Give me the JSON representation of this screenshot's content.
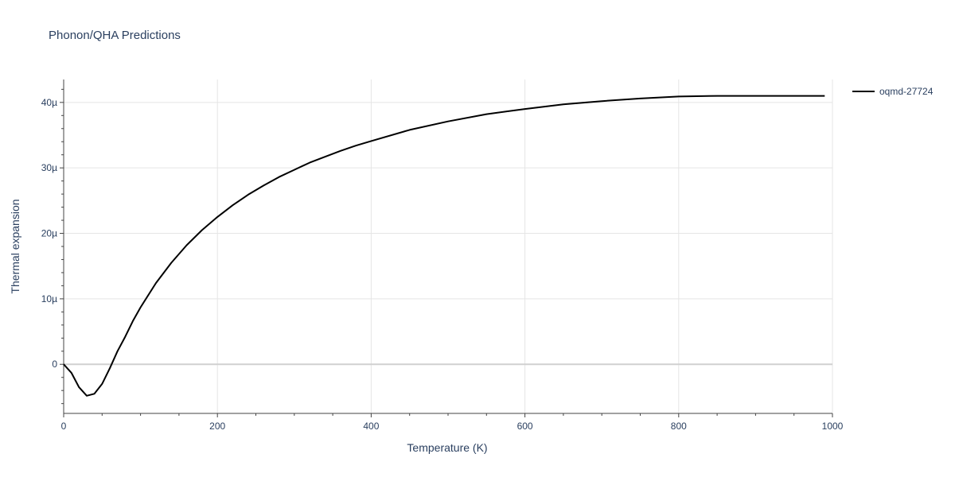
{
  "chart_data": {
    "type": "line",
    "title": "Phonon/QHA Predictions",
    "xlabel": "Temperature (K)",
    "ylabel": "Thermal expansion",
    "xlim": [
      0,
      1000
    ],
    "ylim": [
      -7.5e-06,
      4.35e-05
    ],
    "grid": true,
    "legend_position": "top-right",
    "x_ticks": [
      {
        "value": 0,
        "label": "0"
      },
      {
        "value": 200,
        "label": "200"
      },
      {
        "value": 400,
        "label": "400"
      },
      {
        "value": 600,
        "label": "600"
      },
      {
        "value": 800,
        "label": "800"
      },
      {
        "value": 1000,
        "label": "1000"
      }
    ],
    "y_ticks": [
      {
        "value": 0,
        "label": "0"
      },
      {
        "value": 1e-05,
        "label": "10µ"
      },
      {
        "value": 2e-05,
        "label": "20µ"
      },
      {
        "value": 3e-05,
        "label": "30µ"
      },
      {
        "value": 4e-05,
        "label": "40µ"
      }
    ],
    "series": [
      {
        "name": "oqmd-27724",
        "color": "#000000",
        "x": [
          0,
          10,
          20,
          30,
          40,
          50,
          60,
          70,
          80,
          90,
          100,
          120,
          140,
          160,
          180,
          200,
          220,
          240,
          260,
          280,
          300,
          320,
          340,
          360,
          380,
          400,
          450,
          500,
          550,
          600,
          650,
          700,
          750,
          800,
          850,
          870,
          900,
          950,
          990
        ],
        "y": [
          0,
          -1.3e-06,
          -3.5e-06,
          -4.8e-06,
          -4.5e-06,
          -3e-06,
          -6e-07,
          2e-06,
          4.2e-06,
          6.6e-06,
          8.7e-06,
          1.24e-05,
          1.55e-05,
          1.82e-05,
          2.05e-05,
          2.25e-05,
          2.43e-05,
          2.59e-05,
          2.73e-05,
          2.86e-05,
          2.97e-05,
          3.08e-05,
          3.17e-05,
          3.26e-05,
          3.34e-05,
          3.41e-05,
          3.58e-05,
          3.71e-05,
          3.82e-05,
          3.9e-05,
          3.97e-05,
          4.02e-05,
          4.06e-05,
          4.09e-05,
          4.1e-05,
          4.1e-05,
          4.1e-05,
          4.1e-05,
          4.1e-05
        ]
      }
    ]
  }
}
